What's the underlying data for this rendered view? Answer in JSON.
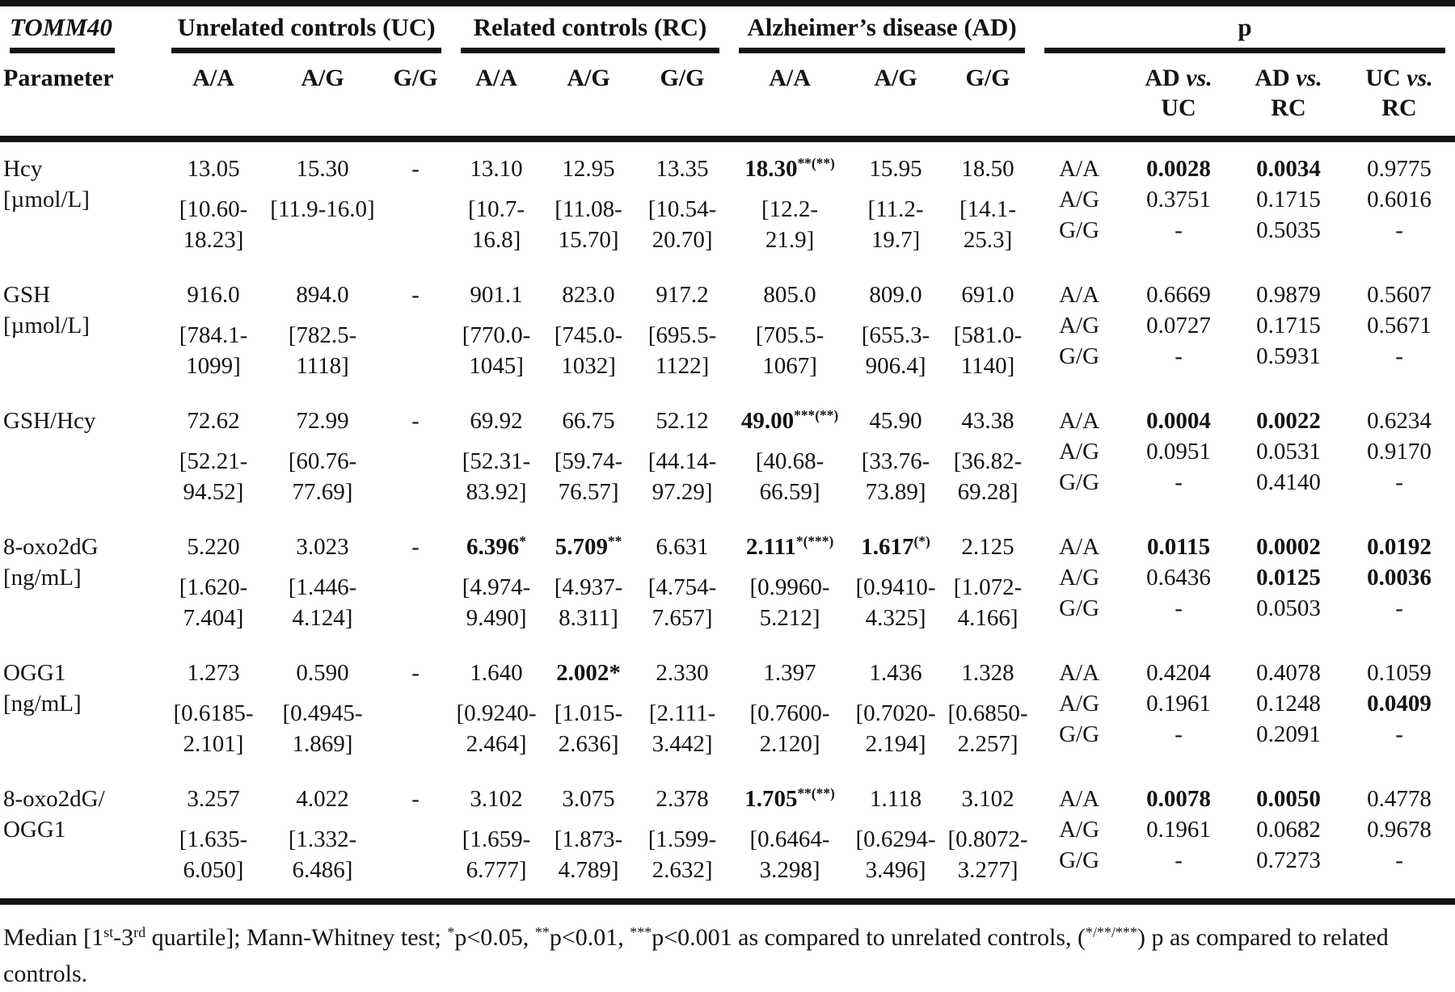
{
  "table": {
    "gene": "TOMM40",
    "param_header": "Parameter",
    "groups": [
      "Unrelated controls (UC)",
      "Related controls (RC)",
      "Alzheimer’s disease (AD)"
    ],
    "p_group": "p",
    "vs_label": "vs.",
    "p_cols_header": [
      {
        "a": "AD",
        "b": "UC"
      },
      {
        "a": "AD",
        "b": "RC"
      },
      {
        "a": "UC",
        "b": "RC"
      }
    ],
    "genotypes": [
      "A/A",
      "A/G",
      "G/G"
    ],
    "rows": [
      {
        "name": [
          "Hcy",
          "[µmol/L]"
        ],
        "cells": [
          {
            "m": "13.05",
            "sup": "",
            "b": false,
            "iqr": [
              "[10.60-",
              "18.23]"
            ]
          },
          {
            "m": "15.30",
            "sup": "",
            "b": false,
            "iqr": [
              "[11.9-16.0]"
            ]
          },
          {
            "m": "-",
            "sup": "",
            "b": false,
            "iqr": []
          },
          {
            "m": "13.10",
            "sup": "",
            "b": false,
            "iqr": [
              "[10.7-",
              "16.8]"
            ]
          },
          {
            "m": "12.95",
            "sup": "",
            "b": false,
            "iqr": [
              "[11.08-",
              "15.70]"
            ]
          },
          {
            "m": "13.35",
            "sup": "",
            "b": false,
            "iqr": [
              "[10.54-",
              "20.70]"
            ]
          },
          {
            "m": "18.30",
            "sup": "**(**)",
            "b": true,
            "iqr": [
              "[12.2-",
              "21.9]"
            ]
          },
          {
            "m": "15.95",
            "sup": "",
            "b": false,
            "iqr": [
              "[11.2-",
              "19.7]"
            ]
          },
          {
            "m": "18.50",
            "sup": "",
            "b": false,
            "iqr": [
              "[14.1-",
              "25.3]"
            ]
          }
        ],
        "p_cols": [
          {
            "vals": [
              "0.0028",
              "0.3751",
              "-"
            ],
            "bold": [
              true,
              false,
              false
            ]
          },
          {
            "vals": [
              "0.0034",
              "0.1715",
              "0.5035"
            ],
            "bold": [
              true,
              false,
              false
            ]
          },
          {
            "vals": [
              "0.9775",
              "0.6016",
              "-"
            ],
            "bold": [
              false,
              false,
              false
            ]
          }
        ]
      },
      {
        "name": [
          "GSH",
          "[µmol/L]"
        ],
        "cells": [
          {
            "m": "916.0",
            "sup": "",
            "b": false,
            "iqr": [
              "[784.1-",
              "1099]"
            ]
          },
          {
            "m": "894.0",
            "sup": "",
            "b": false,
            "iqr": [
              "[782.5-",
              "1118]"
            ]
          },
          {
            "m": "-",
            "sup": "",
            "b": false,
            "iqr": []
          },
          {
            "m": "901.1",
            "sup": "",
            "b": false,
            "iqr": [
              "[770.0-",
              "1045]"
            ]
          },
          {
            "m": "823.0",
            "sup": "",
            "b": false,
            "iqr": [
              "[745.0-",
              "1032]"
            ]
          },
          {
            "m": "917.2",
            "sup": "",
            "b": false,
            "iqr": [
              "[695.5-",
              "1122]"
            ]
          },
          {
            "m": "805.0",
            "sup": "",
            "b": false,
            "iqr": [
              "[705.5-",
              "1067]"
            ]
          },
          {
            "m": "809.0",
            "sup": "",
            "b": false,
            "iqr": [
              "[655.3-",
              "906.4]"
            ]
          },
          {
            "m": "691.0",
            "sup": "",
            "b": false,
            "iqr": [
              "[581.0-",
              "1140]"
            ]
          }
        ],
        "p_cols": [
          {
            "vals": [
              "0.6669",
              "0.0727",
              "-"
            ],
            "bold": [
              false,
              false,
              false
            ]
          },
          {
            "vals": [
              "0.9879",
              "0.1715",
              "0.5931"
            ],
            "bold": [
              false,
              false,
              false
            ]
          },
          {
            "vals": [
              "0.5607",
              "0.5671",
              "-"
            ],
            "bold": [
              false,
              false,
              false
            ]
          }
        ]
      },
      {
        "name": [
          "GSH/Hcy"
        ],
        "cells": [
          {
            "m": "72.62",
            "sup": "",
            "b": false,
            "iqr": [
              "[52.21-",
              "94.52]"
            ]
          },
          {
            "m": "72.99",
            "sup": "",
            "b": false,
            "iqr": [
              "[60.76-",
              "77.69]"
            ]
          },
          {
            "m": "-",
            "sup": "",
            "b": false,
            "iqr": []
          },
          {
            "m": "69.92",
            "sup": "",
            "b": false,
            "iqr": [
              "[52.31-",
              "83.92]"
            ]
          },
          {
            "m": "66.75",
            "sup": "",
            "b": false,
            "iqr": [
              "[59.74-",
              "76.57]"
            ]
          },
          {
            "m": "52.12",
            "sup": "",
            "b": false,
            "iqr": [
              "[44.14-",
              "97.29]"
            ]
          },
          {
            "m": "49.00",
            "sup": "***(**)",
            "b": true,
            "iqr": [
              "[40.68-",
              "66.59]"
            ]
          },
          {
            "m": "45.90",
            "sup": "",
            "b": false,
            "iqr": [
              "[33.76-",
              "73.89]"
            ]
          },
          {
            "m": "43.38",
            "sup": "",
            "b": false,
            "iqr": [
              "[36.82-",
              "69.28]"
            ]
          }
        ],
        "p_cols": [
          {
            "vals": [
              "0.0004",
              "0.0951",
              "-"
            ],
            "bold": [
              true,
              false,
              false
            ]
          },
          {
            "vals": [
              "0.0022",
              "0.0531",
              "0.4140"
            ],
            "bold": [
              true,
              false,
              false
            ]
          },
          {
            "vals": [
              "0.6234",
              "0.9170",
              "-"
            ],
            "bold": [
              false,
              false,
              false
            ]
          }
        ]
      },
      {
        "name": [
          "8-oxo2dG",
          "[ng/mL]"
        ],
        "cells": [
          {
            "m": "5.220",
            "sup": "",
            "b": false,
            "iqr": [
              "[1.620-",
              "7.404]"
            ]
          },
          {
            "m": "3.023",
            "sup": "",
            "b": false,
            "iqr": [
              "[1.446-",
              "4.124]"
            ]
          },
          {
            "m": "-",
            "sup": "",
            "b": false,
            "iqr": []
          },
          {
            "m": "6.396",
            "sup": "*",
            "b": true,
            "iqr": [
              "[4.974-",
              "9.490]"
            ]
          },
          {
            "m": "5.709",
            "sup": "**",
            "b": true,
            "iqr": [
              "[4.937-",
              "8.311]"
            ]
          },
          {
            "m": "6.631",
            "sup": "",
            "b": false,
            "iqr": [
              "[4.754-",
              "7.657]"
            ]
          },
          {
            "m": "2.111",
            "sup": "*(***)",
            "b": true,
            "iqr": [
              "[0.9960-",
              "5.212]"
            ]
          },
          {
            "m": "1.617",
            "sup": "(*)",
            "b": true,
            "iqr": [
              "[0.9410-",
              "4.325]"
            ]
          },
          {
            "m": "2.125",
            "sup": "",
            "b": false,
            "iqr": [
              "[1.072-",
              "4.166]"
            ]
          }
        ],
        "p_cols": [
          {
            "vals": [
              "0.0115",
              "0.6436",
              "-"
            ],
            "bold": [
              true,
              false,
              false
            ]
          },
          {
            "vals": [
              "0.0002",
              "0.0125",
              "0.0503"
            ],
            "bold": [
              true,
              true,
              false
            ]
          },
          {
            "vals": [
              "0.0192",
              "0.0036",
              "-"
            ],
            "bold": [
              true,
              true,
              false
            ]
          }
        ]
      },
      {
        "name": [
          "OGG1",
          "[ng/mL]"
        ],
        "cells": [
          {
            "m": "1.273",
            "sup": "",
            "b": false,
            "iqr": [
              "[0.6185-",
              "2.101]"
            ]
          },
          {
            "m": "0.590",
            "sup": "",
            "b": false,
            "iqr": [
              "[0.4945-",
              "1.869]"
            ]
          },
          {
            "m": "-",
            "sup": "",
            "b": false,
            "iqr": []
          },
          {
            "m": "1.640",
            "sup": "",
            "b": false,
            "iqr": [
              "[0.9240-",
              "2.464]"
            ]
          },
          {
            "m": "2.002*",
            "sup": "",
            "b": true,
            "iqr": [
              "[1.015-",
              "2.636]"
            ]
          },
          {
            "m": "2.330",
            "sup": "",
            "b": false,
            "iqr": [
              "[2.111-",
              "3.442]"
            ]
          },
          {
            "m": "1.397",
            "sup": "",
            "b": false,
            "iqr": [
              "[0.7600-",
              "2.120]"
            ]
          },
          {
            "m": "1.436",
            "sup": "",
            "b": false,
            "iqr": [
              "[0.7020-",
              "2.194]"
            ]
          },
          {
            "m": "1.328",
            "sup": "",
            "b": false,
            "iqr": [
              "[0.6850-",
              "2.257]"
            ]
          }
        ],
        "p_cols": [
          {
            "vals": [
              "0.4204",
              "0.1961",
              "-"
            ],
            "bold": [
              false,
              false,
              false
            ]
          },
          {
            "vals": [
              "0.4078",
              "0.1248",
              "0.2091"
            ],
            "bold": [
              false,
              false,
              false
            ]
          },
          {
            "vals": [
              "0.1059",
              "0.0409",
              "-"
            ],
            "bold": [
              false,
              true,
              false
            ]
          }
        ]
      },
      {
        "name": [
          "8-oxo2dG/",
          "OGG1"
        ],
        "cells": [
          {
            "m": "3.257",
            "sup": "",
            "b": false,
            "iqr": [
              "[1.635-",
              "6.050]"
            ]
          },
          {
            "m": "4.022",
            "sup": "",
            "b": false,
            "iqr": [
              "[1.332-",
              "6.486]"
            ]
          },
          {
            "m": "-",
            "sup": "",
            "b": false,
            "iqr": []
          },
          {
            "m": "3.102",
            "sup": "",
            "b": false,
            "iqr": [
              "[1.659-",
              "6.777]"
            ]
          },
          {
            "m": "3.075",
            "sup": "",
            "b": false,
            "iqr": [
              "[1.873-",
              "4.789]"
            ]
          },
          {
            "m": "2.378",
            "sup": "",
            "b": false,
            "iqr": [
              "[1.599-",
              "2.632]"
            ]
          },
          {
            "m": "1.705",
            "sup": "**(**)",
            "b": true,
            "iqr": [
              "[0.6464-",
              "3.298]"
            ]
          },
          {
            "m": "1.118",
            "sup": "",
            "b": false,
            "iqr": [
              "[0.6294-",
              "3.496]"
            ]
          },
          {
            "m": "3.102",
            "sup": "",
            "b": false,
            "iqr": [
              "[0.8072-",
              "3.277]"
            ]
          }
        ],
        "p_cols": [
          {
            "vals": [
              "0.0078",
              "0.1961",
              "-"
            ],
            "bold": [
              true,
              false,
              false
            ]
          },
          {
            "vals": [
              "0.0050",
              "0.0682",
              "0.7273"
            ],
            "bold": [
              true,
              false,
              false
            ]
          },
          {
            "vals": [
              "0.4778",
              "0.9678",
              "-"
            ],
            "bold": [
              false,
              false,
              false
            ]
          }
        ]
      }
    ],
    "footnote": [
      {
        "t": "Median [1"
      },
      {
        "t": "st",
        "s": 1
      },
      {
        "t": "-3"
      },
      {
        "t": "rd",
        "s": 1
      },
      {
        "t": " quartile]; Mann-Whitney test; "
      },
      {
        "t": "*",
        "s": 1
      },
      {
        "t": "p<0.05, "
      },
      {
        "t": "**",
        "s": 1
      },
      {
        "t": "p<0.01, "
      },
      {
        "t": "***",
        "s": 1
      },
      {
        "t": "p<0.001 as compared to unrelated controls, ("
      },
      {
        "t": "*/**/***",
        "s": 1
      },
      {
        "t": ") p as compared to related controls."
      }
    ]
  }
}
